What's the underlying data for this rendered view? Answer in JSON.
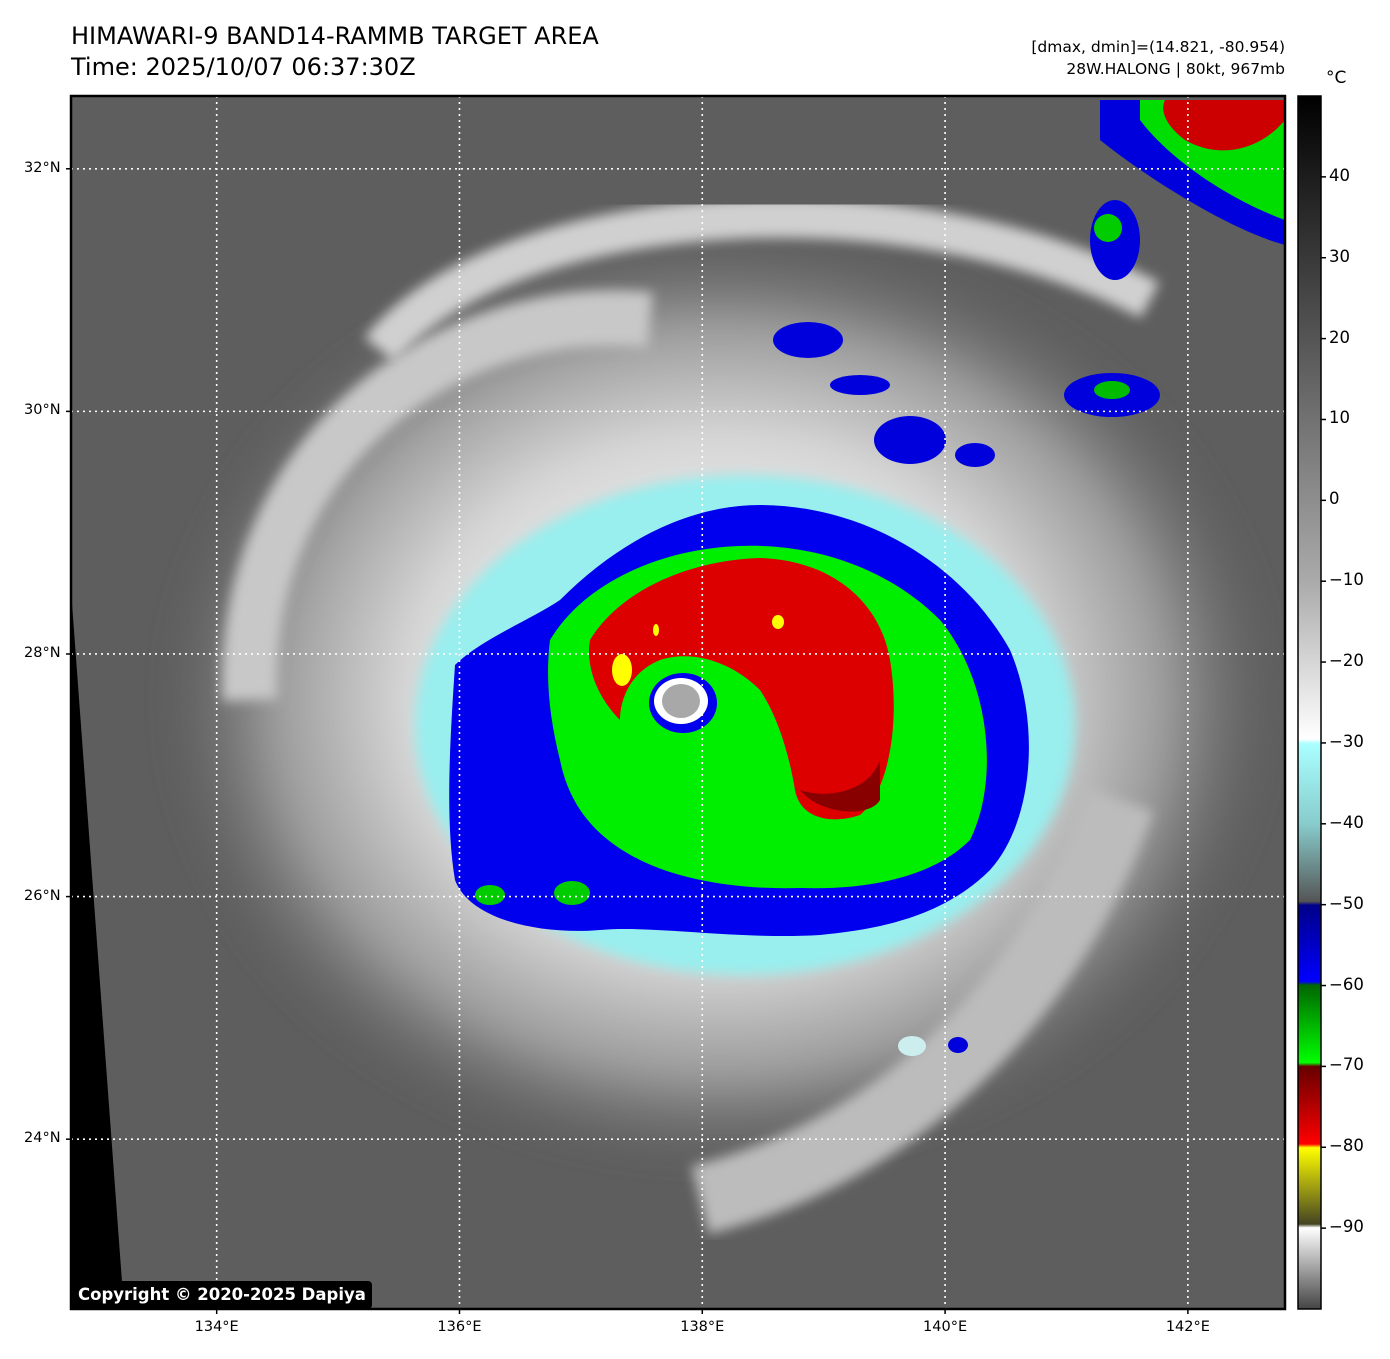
{
  "header": {
    "title_line1": "HIMAWARI-9 BAND14-RAMMB TARGET AREA",
    "title_line2": "Time: 2025/10/07 06:37:30Z",
    "stats_line1": "[dmax, dmin]=(14.821, -80.954)",
    "stats_line2": "28W.HALONG | 80kt, 967mb"
  },
  "map": {
    "lon_range": [
      132.8,
      142.8
    ],
    "lat_range": [
      22.6,
      32.6
    ],
    "storm_center": {
      "lon": 137.85,
      "lat": 27.8
    },
    "grid_lines": "dotted-white",
    "lat_ticks": [
      {
        "value": 32,
        "label": "32°N"
      },
      {
        "value": 30,
        "label": "30°N"
      },
      {
        "value": 28,
        "label": "28°N"
      },
      {
        "value": 26,
        "label": "26°N"
      },
      {
        "value": 24,
        "label": "24°N"
      }
    ],
    "lon_ticks": [
      {
        "value": 134,
        "label": "134°E"
      },
      {
        "value": 136,
        "label": "136°E"
      },
      {
        "value": 138,
        "label": "138°E"
      },
      {
        "value": 140,
        "label": "140°E"
      },
      {
        "value": 142,
        "label": "142°E"
      }
    ]
  },
  "colorbar": {
    "unit": "°C",
    "range": [
      -100,
      50
    ],
    "ticks": [
      "40",
      "30",
      "20",
      "10",
      "0",
      "−10",
      "−20",
      "−30",
      "−40",
      "−50",
      "−60",
      "−70",
      "−80",
      "−90"
    ],
    "tick_values": [
      40,
      30,
      20,
      10,
      0,
      -10,
      -20,
      -30,
      -40,
      -50,
      -60,
      -70,
      -80,
      -90
    ]
  },
  "footer": {
    "copyright": "Copyright © 2020-2025 Dapiya"
  }
}
